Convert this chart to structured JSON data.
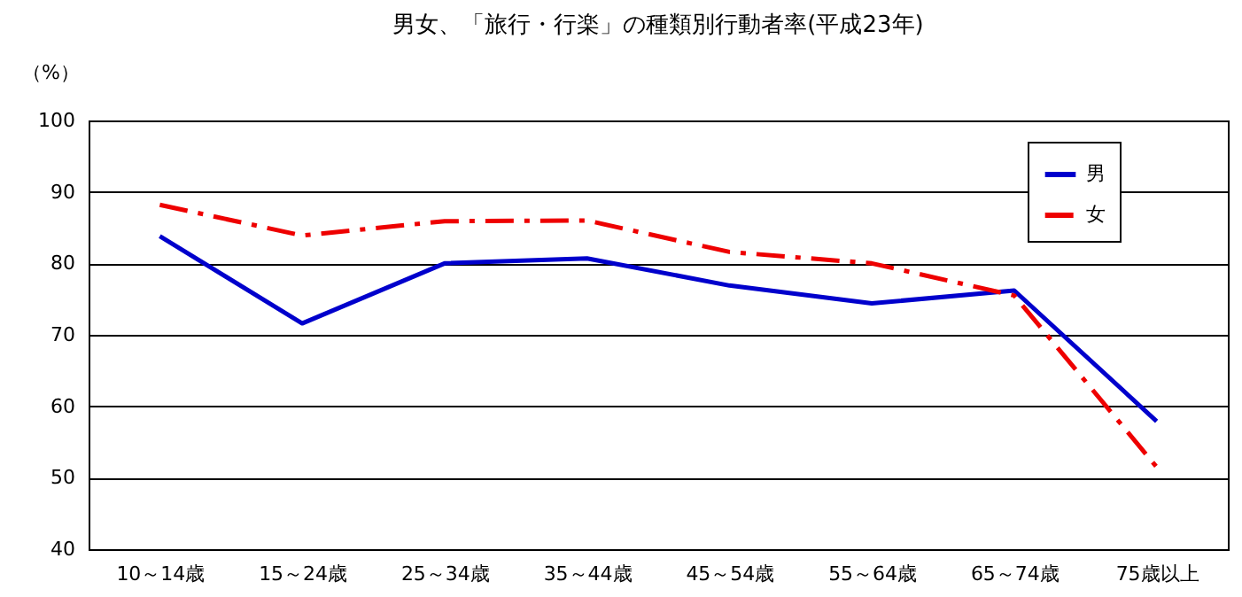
{
  "chart_data": {
    "type": "line",
    "title": "男女、「旅行・行楽」の種類別行動者率(平成23年)",
    "ylabel": "（%）",
    "categories": [
      "10～14歳",
      "15～24歳",
      "25～34歳",
      "35～44歳",
      "45～54歳",
      "55～64歳",
      "65～74歳",
      "75歳以上"
    ],
    "series": [
      {
        "name": "男",
        "color": "#0000cc",
        "line_style": "solid",
        "values": [
          83.8,
          71.6,
          80.0,
          80.7,
          76.9,
          74.4,
          76.2,
          57.9
        ]
      },
      {
        "name": "女",
        "color": "#ee0000",
        "line_style": "dashed",
        "values": [
          88.2,
          83.9,
          85.9,
          86.0,
          81.6,
          80.0,
          75.5,
          51.5
        ]
      }
    ],
    "ylim": [
      40,
      100
    ],
    "yticks": [
      40,
      50,
      60,
      70,
      80,
      90,
      100
    ],
    "grid": "y",
    "legend": "top right",
    "marker": "none"
  }
}
